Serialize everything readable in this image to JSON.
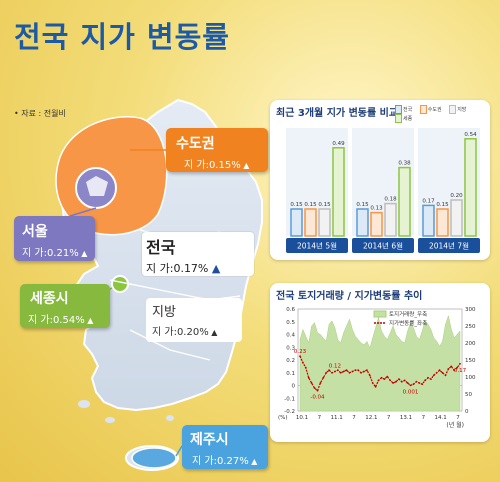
{
  "title": "전국 지가 변동률",
  "source": "• 자료 : 전월비",
  "map": {
    "national": {
      "name": "전국",
      "value": "지 가:0.17%"
    },
    "capital": {
      "name": "수도권",
      "value": "지 가:0.15%"
    },
    "seoul": {
      "name": "서울",
      "value": "지 가:0.21%"
    },
    "sejong": {
      "name": "세종시",
      "value": "지 가:0.54%"
    },
    "local": {
      "name": "지방",
      "value": "지 가:0.20%"
    },
    "jeju": {
      "name": "제주시",
      "value": "지 가:0.27%"
    }
  },
  "colors": {
    "national": "#5b9bd5",
    "capital": "#f79646",
    "local": "#d9d9d9",
    "sejong": "#8cc63f",
    "up_arrow": "#1d4f9c"
  },
  "chart_data": [
    {
      "type": "bar",
      "title": "최근 3개월 지가 변동률 비교",
      "categories": [
        "2014년 5월",
        "2014년 6월",
        "2014년 7월"
      ],
      "series": [
        {
          "name": "전국",
          "values": [
            0.15,
            0.15,
            0.17
          ]
        },
        {
          "name": "수도권",
          "values": [
            0.15,
            0.13,
            0.15
          ]
        },
        {
          "name": "지방",
          "values": [
            0.15,
            0.18,
            0.2
          ]
        },
        {
          "name": "세종",
          "values": [
            0.49,
            0.38,
            0.54
          ]
        }
      ],
      "ylim": [
        0,
        0.6
      ]
    },
    {
      "type": "line",
      "title": "전국 토지거래량 / 지가변동률 추이",
      "legend": [
        "토지거래량_우축",
        "지가변동률_좌축"
      ],
      "legend_position": "top-right",
      "x_ticks": [
        "10.1",
        "7",
        "11.1",
        "7",
        "12.1",
        "7",
        "13.1",
        "7",
        "14.1",
        "7"
      ],
      "xlabel": "(년 월)",
      "left_axis": {
        "label": "(%)",
        "ticks": [
          "0.6",
          "0.5",
          "0.4",
          "0.3",
          "0.2",
          "0.1",
          "0",
          "-0.1",
          "-0.2"
        ],
        "ylim": [
          -0.2,
          0.6
        ]
      },
      "right_axis": {
        "ticks": [
          "300",
          "250",
          "200",
          "150",
          "100",
          "50",
          "0"
        ],
        "ylim": [
          0,
          300
        ]
      },
      "annotations": [
        "0.23",
        "0.12",
        "-0.04",
        "0.001",
        "0.17"
      ],
      "series": [
        {
          "name": "토지거래량_우축",
          "axis": "right",
          "values": [
            210,
            240,
            220,
            200,
            250,
            260,
            230,
            225,
            215,
            205,
            255,
            265,
            245,
            210,
            200,
            230,
            250,
            270,
            240,
            220,
            210,
            200,
            195,
            205,
            185,
            215,
            245,
            275,
            235,
            220,
            210,
            230,
            250,
            225,
            215,
            205,
            200,
            235,
            260,
            245,
            220,
            210,
            235,
            265,
            255,
            240,
            215,
            205,
            190,
            205,
            255,
            280,
            240,
            215,
            225,
            235
          ]
        },
        {
          "name": "지가변동률_좌축",
          "axis": "left",
          "values": [
            0.23,
            0.18,
            0.14,
            0.06,
            0.02,
            -0.02,
            -0.04,
            0.02,
            0.06,
            0.1,
            0.12,
            0.1,
            0.11,
            0.12,
            0.1,
            0.11,
            0.12,
            0.1,
            0.11,
            0.12,
            0.12,
            0.1,
            0.11,
            0.12,
            0.08,
            0.02,
            -0.01,
            0.04,
            0.06,
            0.05,
            0.07,
            0.04,
            0.02,
            0.03,
            0.05,
            0.03,
            0.04,
            0.02,
            0.001,
            0.01,
            0.03,
            0.02,
            0.01,
            0.04,
            0.06,
            0.05,
            0.08,
            0.1,
            0.12,
            0.1,
            0.08,
            0.13,
            0.15,
            0.12,
            0.14,
            0.17
          ]
        }
      ]
    }
  ]
}
